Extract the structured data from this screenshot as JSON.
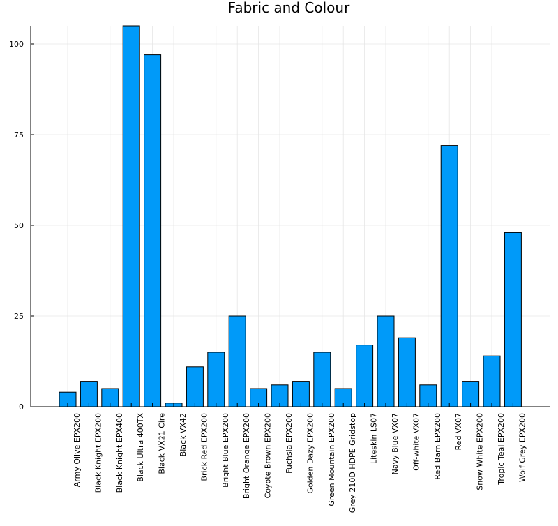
{
  "chart_data": {
    "type": "bar",
    "title": "Fabric and Colour",
    "xlabel": "",
    "ylabel": "",
    "categories": [
      "Army Olive EPX200",
      "Black Knight EPX200",
      "Black Knight EPX400",
      "Black Ultra 400TX",
      "Black VX21 Cire",
      "Black VX42",
      "Brick Red EPX200",
      "Bright Blue EPX200",
      "Bright Orange EPX200",
      "Coyote Brown EPX200",
      "Fuchsia EPX200",
      "Golden Dazy EPX200",
      "Green Mountain EPX200",
      "Grey 210D HDPE Gridstop",
      "Liteskin LS07",
      "Navy Blue VX07",
      "Off-white VX07",
      "Red Barn EPX200",
      "Red VX07",
      "Snow White EPX200",
      "Tropic Teal EPX200",
      "Wolf Grey EPX200"
    ],
    "values": [
      4,
      7,
      5,
      105,
      97,
      1,
      11,
      15,
      25,
      5,
      6,
      7,
      15,
      5,
      17,
      25,
      19,
      6,
      72,
      7,
      14,
      48
    ],
    "ylim": [
      0,
      105
    ],
    "yticks": [
      0,
      25,
      50,
      75,
      100
    ],
    "ytick_labels": [
      "0",
      "25",
      "50",
      "75",
      "100"
    ],
    "bar_color": "#009af9",
    "grid": true,
    "legend": "none"
  }
}
